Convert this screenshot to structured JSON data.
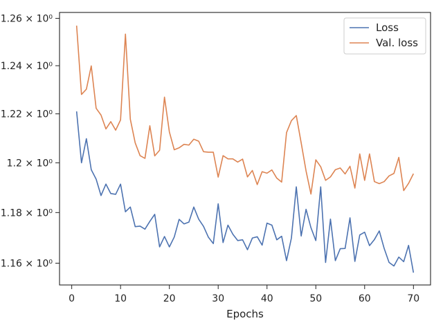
{
  "chart_data": {
    "type": "line",
    "xlabel": "Epochs",
    "ylabel": "",
    "xlim": [
      -2.5,
      73.5
    ],
    "ylim": [
      1.1515,
      1.2625
    ],
    "log_y": true,
    "x_ticks": [
      0,
      10,
      20,
      30,
      40,
      50,
      60,
      70
    ],
    "y_ticks": [
      {
        "value": 1.16,
        "label": "1.16 × 10⁰"
      },
      {
        "value": 1.18,
        "label": "1.18 × 10⁰"
      },
      {
        "value": 1.2,
        "label": "1.2 × 10⁰"
      },
      {
        "value": 1.22,
        "label": "1.22 × 10⁰"
      },
      {
        "value": 1.24,
        "label": "1.24 × 10⁰"
      },
      {
        "value": 1.26,
        "label": "1.26 × 10⁰"
      }
    ],
    "grid": false,
    "legend_position": "top-right",
    "series": [
      {
        "name": "Loss",
        "color": "#4c72b0",
        "x": [
          1,
          2,
          3,
          4,
          5,
          6,
          7,
          8,
          9,
          10,
          11,
          12,
          13,
          14,
          15,
          16,
          17,
          18,
          19,
          20,
          21,
          22,
          23,
          24,
          25,
          26,
          27,
          28,
          29,
          30,
          31,
          32,
          33,
          34,
          35,
          36,
          37,
          38,
          39,
          40,
          41,
          42,
          43,
          44,
          45,
          46,
          47,
          48,
          49,
          50,
          51,
          52,
          53,
          54,
          55,
          56,
          57,
          58,
          59,
          60,
          61,
          62,
          63,
          64,
          65,
          66,
          67,
          68,
          69,
          70
        ],
        "values": [
          1.221,
          1.2,
          1.2098,
          1.1972,
          1.1934,
          1.1868,
          1.1914,
          1.1876,
          1.1873,
          1.1914,
          1.1803,
          1.1822,
          1.1744,
          1.1746,
          1.1734,
          1.1765,
          1.1793,
          1.1664,
          1.1705,
          1.1664,
          1.1703,
          1.1773,
          1.1755,
          1.1762,
          1.1822,
          1.1774,
          1.1745,
          1.1702,
          1.1677,
          1.1835,
          1.1681,
          1.175,
          1.1714,
          1.1689,
          1.1692,
          1.1653,
          1.1699,
          1.1704,
          1.1671,
          1.1758,
          1.175,
          1.1692,
          1.1706,
          1.161,
          1.1699,
          1.1903,
          1.1707,
          1.1813,
          1.174,
          1.1689,
          1.1903,
          1.1603,
          1.1774,
          1.161,
          1.1657,
          1.1658,
          1.1779,
          1.1607,
          1.1711,
          1.1722,
          1.1669,
          1.1693,
          1.1727,
          1.1658,
          1.1603,
          1.1589,
          1.1624,
          1.1606,
          1.167,
          1.1563
        ]
      },
      {
        "name": "Val. loss",
        "color": "#dd8452",
        "x": [
          1,
          2,
          3,
          4,
          5,
          6,
          7,
          8,
          9,
          10,
          11,
          12,
          13,
          14,
          15,
          16,
          17,
          18,
          19,
          20,
          21,
          22,
          23,
          24,
          25,
          26,
          27,
          28,
          29,
          30,
          31,
          32,
          33,
          34,
          35,
          36,
          37,
          38,
          39,
          40,
          41,
          42,
          43,
          44,
          45,
          46,
          47,
          48,
          49,
          50,
          51,
          52,
          53,
          54,
          55,
          56,
          57,
          58,
          59,
          60,
          61,
          62,
          63,
          64,
          65,
          66,
          67,
          68,
          69,
          70
        ],
        "values": [
          1.2569,
          1.228,
          1.2302,
          1.2399,
          1.2223,
          1.2195,
          1.2138,
          1.2168,
          1.2133,
          1.2175,
          1.2533,
          1.2178,
          1.2081,
          1.2029,
          1.2018,
          1.2151,
          1.2028,
          1.2051,
          1.2269,
          1.2126,
          1.2053,
          1.2061,
          1.2075,
          1.2072,
          1.2096,
          1.2088,
          1.2045,
          1.2043,
          1.2043,
          1.1942,
          1.2029,
          1.2016,
          1.2016,
          1.2003,
          1.2015,
          1.1943,
          1.1969,
          1.1912,
          1.1964,
          1.1958,
          1.1971,
          1.1938,
          1.1922,
          1.2123,
          1.2172,
          1.2193,
          1.2081,
          1.1967,
          1.1874,
          1.2012,
          1.1984,
          1.1929,
          1.1943,
          1.1972,
          1.1979,
          1.1955,
          1.1986,
          1.1898,
          1.2036,
          1.1929,
          1.2036,
          1.1924,
          1.1916,
          1.1924,
          1.1947,
          1.1957,
          1.2022,
          1.1888,
          1.1917,
          1.1956
        ]
      }
    ]
  }
}
